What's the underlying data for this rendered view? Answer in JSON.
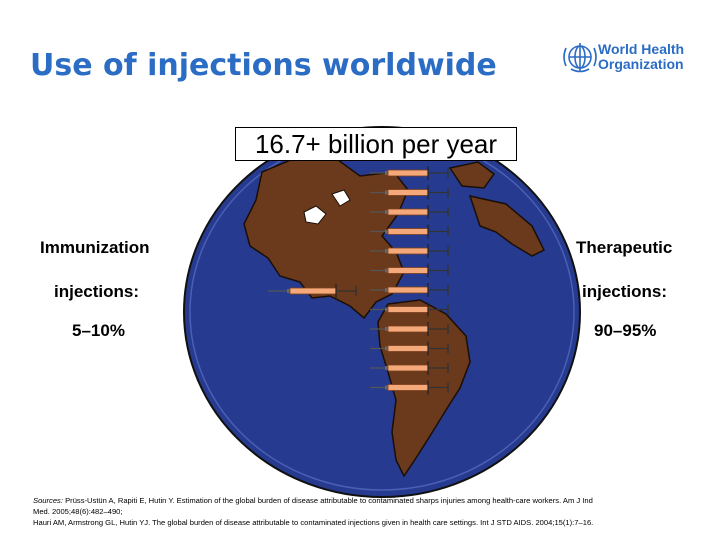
{
  "slide": {
    "title": "Use of injections worldwide",
    "headline": "16.7+ billion per year"
  },
  "logo": {
    "name": "who-emblem",
    "line1": "World Health",
    "line2": "Organization",
    "color": "#2b6cc4"
  },
  "left_panel": {
    "line1": "Immunization",
    "line2": "injections:",
    "value": "5–10%"
  },
  "right_panel": {
    "line1": "Therapeutic",
    "line2": "injections:",
    "value": "90–95%"
  },
  "illustration": {
    "globe_color": "#263b8f",
    "land_color": "#6b3a1c",
    "syringe_barrel_color": "#f5a87a",
    "syringe_count_stack": 12,
    "syringe_count_side": 1
  },
  "sources": {
    "label": "Sources:",
    "line1": "Prüss-Ustün A, Rapiti E, Hutin Y. Estimation of the global burden of disease attributable to contaminated sharps injuries among health-care workers. Am J Ind",
    "line2": "Med. 2005;48(6):482–490;",
    "line3": "Hauri AM, Armstrong GL, Hutin YJ. The global burden of disease attributable to contaminated injections given in health care settings. Int J STD AIDS. 2004;15(1):7–16."
  }
}
